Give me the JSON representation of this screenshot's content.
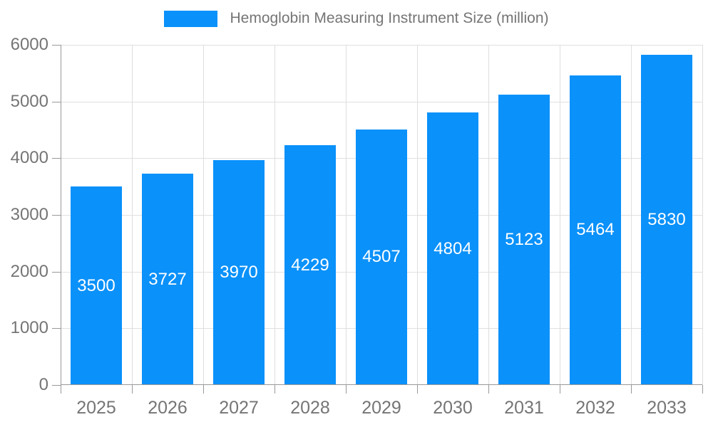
{
  "chart_data": {
    "type": "bar",
    "title": "Hemoglobin Measuring Instrument Size (million)",
    "categories": [
      "2025",
      "2026",
      "2027",
      "2028",
      "2029",
      "2030",
      "2031",
      "2032",
      "2033"
    ],
    "values": [
      3500,
      3727,
      3970,
      4229,
      4507,
      4804,
      5123,
      5464,
      5830
    ],
    "series": [
      {
        "name": "Hemoglobin Measuring Instrument Size (million)",
        "values": [
          3500,
          3727,
          3970,
          4229,
          4507,
          4804,
          5123,
          5464,
          5830
        ]
      }
    ],
    "xlabel": "",
    "ylabel": "",
    "ylim": [
      0,
      6000
    ],
    "yticks": [
      0,
      1000,
      2000,
      3000,
      4000,
      5000,
      6000
    ],
    "grid": true,
    "legend_position": "top-center",
    "value_labels": "inside-bar-center",
    "colors": {
      "bar": "#0a91fa",
      "bar_value_text": "#ffffff",
      "axis_text": "#757575",
      "legend_text": "#757575",
      "gridline": "#e0e0e0",
      "axis_line": "#999999",
      "background": "#ffffff"
    }
  }
}
